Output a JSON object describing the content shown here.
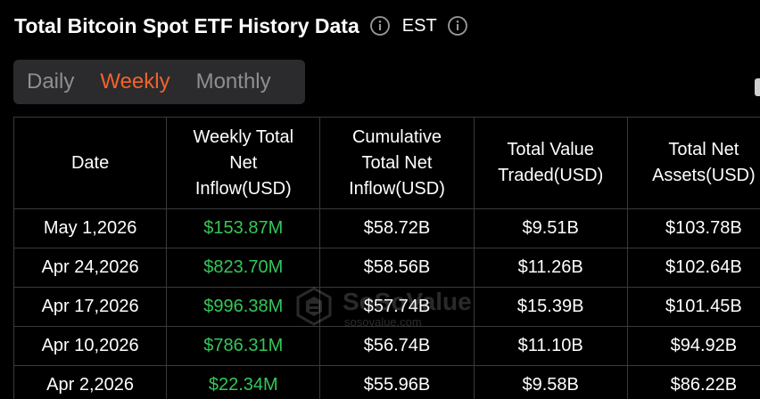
{
  "header": {
    "title": "Total Bitcoin Spot ETF History Data",
    "info_icon": "info-circle-icon",
    "timezone": "EST",
    "timezone_icon": "info-circle-icon"
  },
  "tabs": [
    {
      "label": "Daily",
      "active": false
    },
    {
      "label": "Weekly",
      "active": true
    },
    {
      "label": "Monthly",
      "active": false
    }
  ],
  "colors": {
    "accent": "#f0632c",
    "positive": "#34c759",
    "background": "#000000",
    "tab_bg": "#2b2b2d",
    "border": "#3a3a3c"
  },
  "table": {
    "columns": [
      "Date",
      "Weekly Total Net Inflow(USD)",
      "Cumulative Total Net Inflow(USD)",
      "Total Value Traded(USD)",
      "Total Net Assets(USD)"
    ],
    "rows": [
      [
        "May 1,2026",
        "$153.87M",
        "$58.72B",
        "$9.51B",
        "$103.78B"
      ],
      [
        "Apr 24,2026",
        "$823.70M",
        "$58.56B",
        "$11.26B",
        "$102.64B"
      ],
      [
        "Apr 17,2026",
        "$996.38M",
        "$57.74B",
        "$15.39B",
        "$101.45B"
      ],
      [
        "Apr 10,2026",
        "$786.31M",
        "$56.74B",
        "$11.10B",
        "$94.92B"
      ],
      [
        "Apr 2,2026",
        "$22.34M",
        "$55.96B",
        "$9.58B",
        "$86.22B"
      ]
    ]
  },
  "watermark": {
    "brand": "SoSoValue",
    "url": "sosovalue.com",
    "icon": "sosovalue-logo-icon"
  }
}
